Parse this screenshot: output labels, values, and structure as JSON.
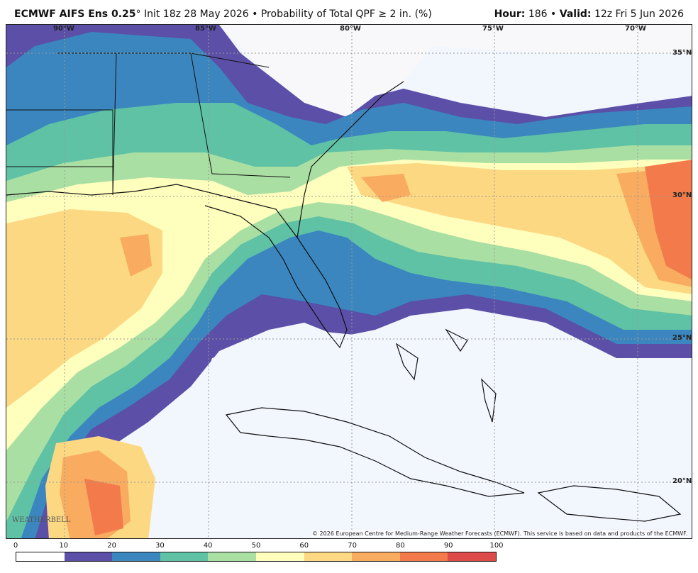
{
  "header": {
    "model": "ECMWF AIFS Ens 0.25",
    "degree": "°",
    "init": "Init 18z 28 May 2026",
    "product": "Probability of Total QPF",
    "threshold": "≥ 2 in. (%)",
    "hour_label": "Hour:",
    "hour": "186",
    "valid_label": "Valid:",
    "valid": "12z Fri 5 Jun 2026",
    "bullet": "•"
  },
  "map": {
    "lon_labels": [
      "90°W",
      "85°W",
      "80°W",
      "75°W",
      "70°W"
    ],
    "lat_labels": [
      "35°N",
      "30°N",
      "25°N",
      "20°N"
    ],
    "credit": "© 2026 European Centre for Medium-Range Weather Forecasts (ECMWF). This service is based on data and products of the ECMWF.",
    "logo": "WEATHERBELL"
  },
  "colorbar": {
    "ticks": [
      "0",
      "10",
      "20",
      "30",
      "40",
      "50",
      "60",
      "70",
      "80",
      "90",
      "100"
    ],
    "colors": [
      "#ffffff",
      "#5b4fa8",
      "#3b86be",
      "#5fc2a5",
      "#aadfa3",
      "#fefebd",
      "#fdd882",
      "#f9ab60",
      "#f27a4b",
      "#dc4a4a",
      "#9e0142"
    ]
  }
}
